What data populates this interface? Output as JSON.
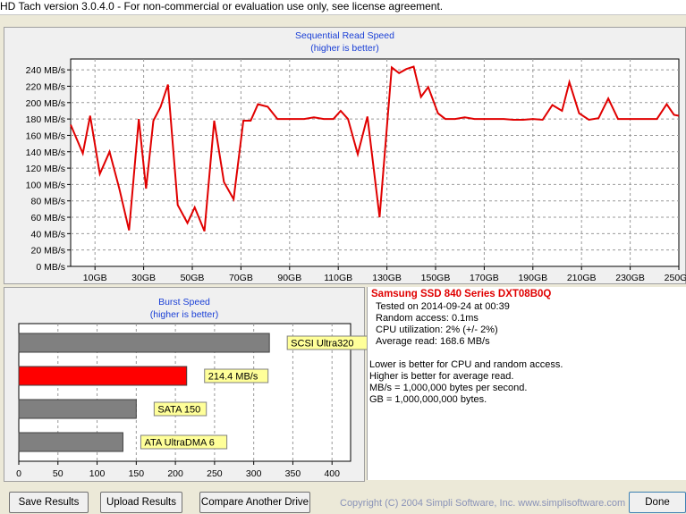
{
  "window": {
    "title": "HD Tach version 3.0.4.0  - For non-commercial or evaluation use only, see license agreement."
  },
  "read_chart_text": {
    "title": "Sequential Read Speed",
    "subtitle": "(higher is better)"
  },
  "burst_chart_text": {
    "title": "Burst Speed",
    "subtitle": "(higher is better)"
  },
  "chart_data": [
    {
      "type": "line",
      "title": "Sequential Read Speed",
      "subtitle": "(higher is better)",
      "ylim": [
        0,
        250
      ],
      "xlim": [
        0,
        250
      ],
      "y_ticks": [
        0,
        20,
        40,
        60,
        80,
        100,
        120,
        140,
        160,
        180,
        200,
        220,
        240
      ],
      "y_tick_labels": [
        "0 MB/s",
        "20 MB/s",
        "40 MB/s",
        "60 MB/s",
        "80 MB/s",
        "100 MB/s",
        "120 MB/s",
        "140 MB/s",
        "160 MB/s",
        "180 MB/s",
        "200 MB/s",
        "220 MB/s",
        "240 MB/s"
      ],
      "x_ticks": [
        10,
        30,
        50,
        70,
        90,
        110,
        130,
        150,
        170,
        190,
        210,
        230,
        250
      ],
      "x_tick_labels": [
        "10GB",
        "30GB",
        "50GB",
        "70GB",
        "90GB",
        "110GB",
        "130GB",
        "150GB",
        "170GB",
        "190GB",
        "210GB",
        "230GB",
        "250GB"
      ],
      "grid": true,
      "color": "#e00000",
      "series": [
        {
          "x": [
            0,
            5,
            8,
            12,
            16,
            20,
            24,
            28,
            31,
            34,
            37,
            40,
            44,
            48,
            51,
            55,
            59,
            63,
            67,
            71,
            74,
            77,
            81,
            85,
            89,
            92,
            96,
            100,
            104,
            108,
            111,
            114,
            118,
            122,
            127,
            132,
            135,
            138,
            141,
            144,
            147,
            151,
            154,
            158,
            162,
            166,
            170,
            174,
            178,
            182,
            186,
            190,
            194,
            198,
            202,
            205,
            209,
            213,
            217,
            221,
            225,
            229,
            233,
            237,
            241,
            245,
            248,
            250
          ],
          "y": [
            173,
            138,
            184,
            113,
            140,
            95,
            44,
            180,
            95,
            178,
            195,
            222,
            75,
            53,
            72,
            43,
            178,
            103,
            82,
            178,
            178,
            198,
            195,
            180,
            180,
            180,
            180,
            182,
            180,
            180,
            190,
            180,
            137,
            183,
            60,
            243,
            236,
            241,
            244,
            207,
            219,
            187,
            180,
            180,
            182,
            180,
            180,
            180,
            180,
            179,
            179,
            180,
            179,
            197,
            190,
            225,
            187,
            179,
            181,
            205,
            180,
            180,
            180,
            180,
            180,
            198,
            185,
            184
          ]
        }
      ]
    },
    {
      "type": "bar",
      "orientation": "horizontal",
      "title": "Burst Speed",
      "subtitle": "(higher is better)",
      "xlim": [
        0,
        450
      ],
      "x_ticks": [
        0,
        50,
        100,
        150,
        200,
        250,
        300,
        350,
        400
      ],
      "categories": [
        "SCSI Ultra320",
        "214.4 MB/s",
        "SATA 150",
        "ATA UltraDMA 6"
      ],
      "values": [
        320,
        214.4,
        150,
        133
      ],
      "colors": [
        "#808080",
        "#ff0000",
        "#808080",
        "#808080"
      ],
      "label_bg": "#ffff99"
    }
  ],
  "results": {
    "drive_name": "Samsung  SSD 840 Series DXT08B0Q",
    "tested_on": "Tested on 2014-09-24 at 00:39",
    "random_access": "Random access: 0.1ms",
    "cpu_utilization": "CPU utilization: 2% (+/- 2%)",
    "average_read": "Average read: 168.6 MB/s",
    "notes": [
      "Lower is better for CPU and random access.",
      "Higher is better for average read.",
      "MB/s = 1,000,000 bytes per second.",
      "GB = 1,000,000,000 bytes."
    ]
  },
  "buttons": {
    "save": "Save Results",
    "upload": "Upload Results",
    "compare": "Compare Another Drive",
    "done": "Done"
  },
  "copyright": "Copyright (C) 2004 Simpli Software, Inc. www.simplisoftware.com"
}
